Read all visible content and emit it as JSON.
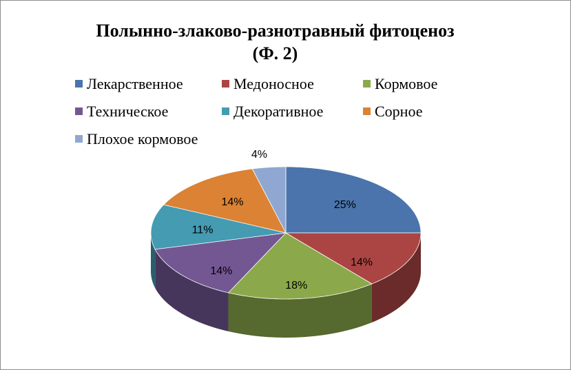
{
  "chart_data": {
    "type": "pie",
    "title_line1": "Полынно-злаково-разнотравный фитоценоз",
    "title_line2": "(Ф. 2)",
    "categories": [
      "Лекарственное",
      "Медоносное",
      "Кормовое",
      "Техническое",
      "Декоративное",
      "Сорное",
      "Плохое кормовое"
    ],
    "values": [
      25,
      14,
      18,
      14,
      11,
      14,
      4
    ],
    "labels": [
      "25%",
      "14%",
      "18%",
      "14%",
      "11%",
      "14%",
      "4%"
    ],
    "colors": [
      "#4a74ab",
      "#ab4543",
      "#8ba94a",
      "#735792",
      "#449bb2",
      "#db8234",
      "#90a8d1"
    ],
    "legend_position": "top",
    "style": "3d-pie"
  }
}
